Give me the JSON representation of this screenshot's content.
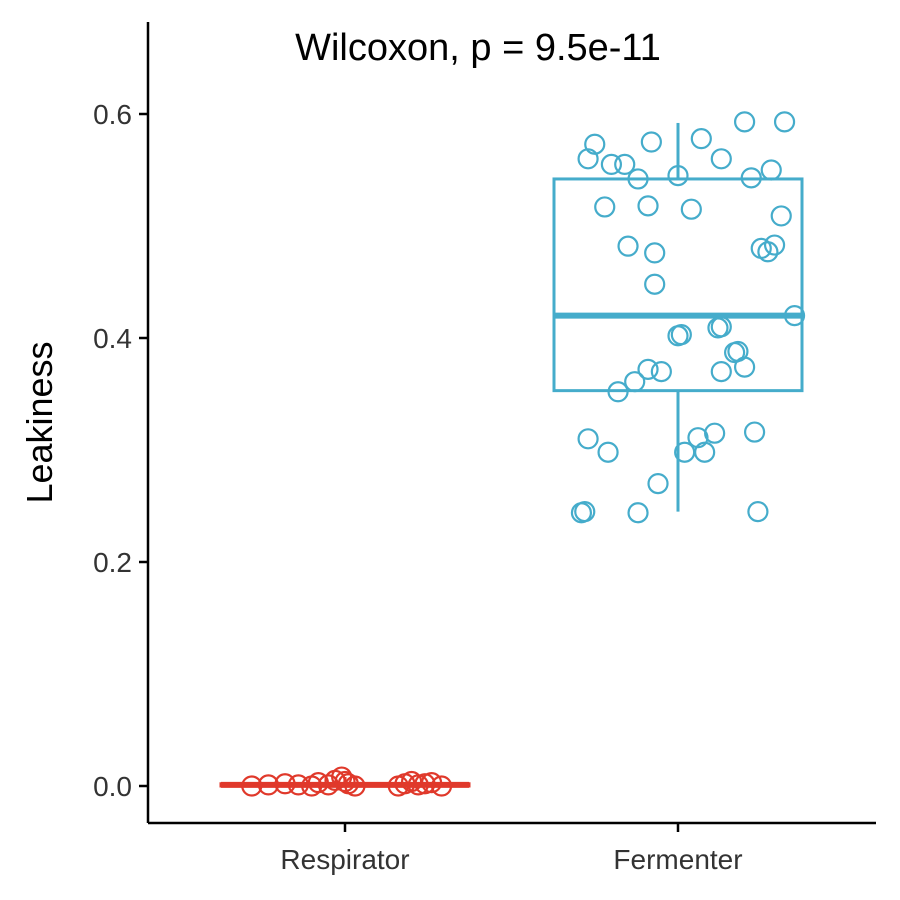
{
  "chart_data": {
    "type": "box-jitter",
    "title": "",
    "annotation": "Wilcoxon, p = 9.5e-11",
    "xlabel": "",
    "ylabel": "Leakiness",
    "ylim": [
      -0.033,
      0.68
    ],
    "yticks": [
      0.0,
      0.2,
      0.4,
      0.6
    ],
    "ytick_labels": [
      "0.0",
      "0.2",
      "0.4",
      "0.6"
    ],
    "categories": [
      "Respirator",
      "Fermenter"
    ],
    "legend": "none",
    "grid": false,
    "groups": [
      {
        "label": "Respirator",
        "color": "#E0392B",
        "box": {
          "whisker_low": 0.0,
          "q1": 0.0,
          "median": 0.001,
          "q3": 0.002,
          "whisker_high": 0.008
        },
        "points": [
          {
            "dx": -0.28,
            "y": 0.0
          },
          {
            "dx": -0.23,
            "y": 0.001
          },
          {
            "dx": -0.18,
            "y": 0.002
          },
          {
            "dx": -0.14,
            "y": 0.001
          },
          {
            "dx": -0.1,
            "y": 0.0
          },
          {
            "dx": -0.08,
            "y": 0.003
          },
          {
            "dx": -0.05,
            "y": 0.001
          },
          {
            "dx": -0.03,
            "y": 0.005
          },
          {
            "dx": -0.01,
            "y": 0.008
          },
          {
            "dx": 0.0,
            "y": 0.004
          },
          {
            "dx": 0.01,
            "y": 0.002
          },
          {
            "dx": 0.03,
            "y": 0.0
          },
          {
            "dx": 0.16,
            "y": 0.0
          },
          {
            "dx": 0.18,
            "y": 0.002
          },
          {
            "dx": 0.2,
            "y": 0.004
          },
          {
            "dx": 0.22,
            "y": 0.001
          },
          {
            "dx": 0.24,
            "y": 0.002
          },
          {
            "dx": 0.26,
            "y": 0.003
          },
          {
            "dx": 0.29,
            "y": 0.0
          }
        ]
      },
      {
        "label": "Fermenter",
        "color": "#45ACCB",
        "box": {
          "whisker_low": 0.245,
          "q1": 0.353,
          "median": 0.42,
          "q3": 0.542,
          "whisker_high": 0.592
        },
        "points": [
          {
            "dx": -0.27,
            "y": 0.56
          },
          {
            "dx": -0.25,
            "y": 0.573
          },
          {
            "dx": -0.2,
            "y": 0.555
          },
          {
            "dx": -0.16,
            "y": 0.555
          },
          {
            "dx": -0.12,
            "y": 0.542
          },
          {
            "dx": 0.0,
            "y": 0.545
          },
          {
            "dx": 0.07,
            "y": 0.578
          },
          {
            "dx": 0.13,
            "y": 0.56
          },
          {
            "dx": 0.28,
            "y": 0.55
          },
          {
            "dx": -0.08,
            "y": 0.575
          },
          {
            "dx": 0.2,
            "y": 0.593
          },
          {
            "dx": 0.32,
            "y": 0.593
          },
          {
            "dx": -0.22,
            "y": 0.517
          },
          {
            "dx": -0.09,
            "y": 0.518
          },
          {
            "dx": 0.04,
            "y": 0.515
          },
          {
            "dx": 0.22,
            "y": 0.543
          },
          {
            "dx": 0.31,
            "y": 0.509
          },
          {
            "dx": -0.15,
            "y": 0.482
          },
          {
            "dx": -0.07,
            "y": 0.476
          },
          {
            "dx": 0.25,
            "y": 0.48
          },
          {
            "dx": 0.27,
            "y": 0.477
          },
          {
            "dx": 0.29,
            "y": 0.483
          },
          {
            "dx": -0.07,
            "y": 0.448
          },
          {
            "dx": 0.35,
            "y": 0.42
          },
          {
            "dx": 0.0,
            "y": 0.402
          },
          {
            "dx": 0.01,
            "y": 0.403
          },
          {
            "dx": 0.12,
            "y": 0.409
          },
          {
            "dx": 0.13,
            "y": 0.41
          },
          {
            "dx": 0.17,
            "y": 0.387
          },
          {
            "dx": 0.18,
            "y": 0.388
          },
          {
            "dx": -0.09,
            "y": 0.372
          },
          {
            "dx": -0.05,
            "y": 0.37
          },
          {
            "dx": 0.13,
            "y": 0.37
          },
          {
            "dx": 0.2,
            "y": 0.374
          },
          {
            "dx": -0.13,
            "y": 0.361
          },
          {
            "dx": -0.18,
            "y": 0.352
          },
          {
            "dx": -0.27,
            "y": 0.31
          },
          {
            "dx": -0.21,
            "y": 0.298
          },
          {
            "dx": 0.02,
            "y": 0.298
          },
          {
            "dx": 0.06,
            "y": 0.311
          },
          {
            "dx": 0.08,
            "y": 0.298
          },
          {
            "dx": 0.11,
            "y": 0.315
          },
          {
            "dx": 0.23,
            "y": 0.316
          },
          {
            "dx": -0.06,
            "y": 0.27
          },
          {
            "dx": -0.28,
            "y": 0.245
          },
          {
            "dx": -0.29,
            "y": 0.244
          },
          {
            "dx": -0.12,
            "y": 0.244
          },
          {
            "dx": 0.24,
            "y": 0.245
          }
        ]
      }
    ]
  }
}
